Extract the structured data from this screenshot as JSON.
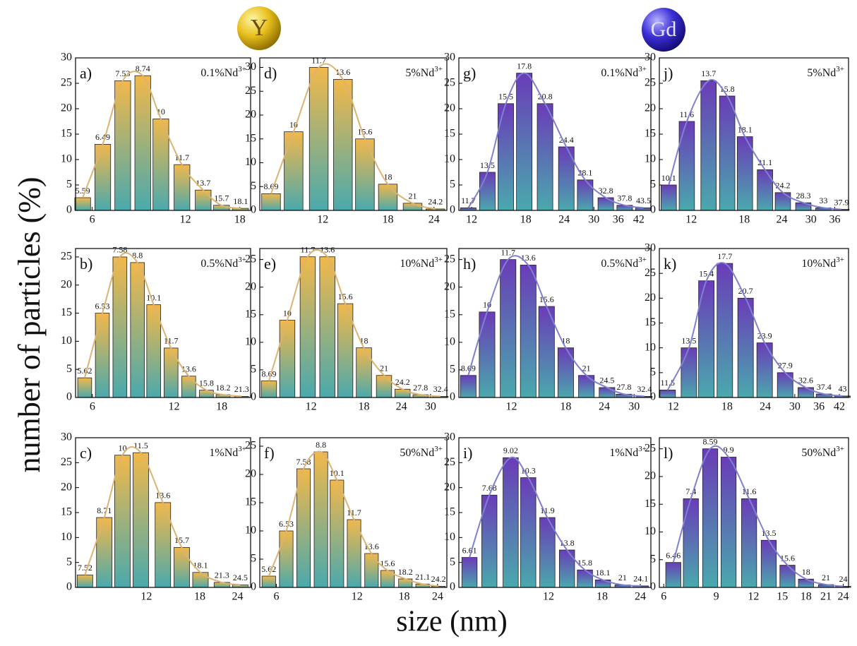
{
  "y_label": "number of particles (%)",
  "x_label": "size (nm)",
  "column_headers": [
    "Y",
    "Gd"
  ],
  "chart_data": [
    {
      "type": "bar",
      "label": "a)",
      "annotation": "0.1%Nd",
      "annotation_superscript": "3+",
      "xscale": "log",
      "x": [
        5.59,
        6.49,
        7.53,
        8.74,
        10,
        11.7,
        13.7,
        15.7,
        18.1
      ],
      "values": [
        2.5,
        13,
        25.5,
        26.5,
        18,
        9,
        4,
        1,
        0.4
      ],
      "xlim": [
        5.3,
        19.5
      ],
      "ylim": [
        0,
        30
      ],
      "xticks": [
        6,
        12,
        18
      ],
      "yticks": [
        0,
        5,
        10,
        15,
        20,
        25,
        30
      ],
      "color": "#f2b84a",
      "color_bottom": "#4aa9ad",
      "fit_color": "#dcb371"
    },
    {
      "type": "bar",
      "label": "b)",
      "annotation": "0.5%Nd",
      "annotation_superscript": "3+",
      "xscale": "log",
      "x": [
        5.62,
        6.53,
        7.58,
        8.8,
        10.1,
        11.7,
        13.6,
        15.8,
        18.2,
        21.3
      ],
      "values": [
        3.5,
        15,
        25,
        24,
        16.5,
        8.8,
        3.8,
        1.3,
        0.5,
        0.2
      ],
      "xlim": [
        5.2,
        23
      ],
      "ylim": [
        0,
        26.5
      ],
      "xticks": [
        6,
        12,
        18
      ],
      "yticks": [
        0,
        5,
        10,
        15,
        20,
        25
      ],
      "color": "#f2b84a",
      "color_bottom": "#4aa9ad",
      "fit_color": "#dcb371"
    },
    {
      "type": "bar",
      "label": "c)",
      "annotation": "1%Nd",
      "annotation_superscript": "3+",
      "xscale": "log",
      "x": [
        7.52,
        8.71,
        10,
        11.5,
        13.6,
        15.7,
        18.1,
        21.3,
        24.5
      ],
      "values": [
        2.5,
        14,
        26.5,
        27,
        17,
        8,
        3,
        1,
        0.5
      ],
      "xlim": [
        7,
        26.5
      ],
      "ylim": [
        0,
        30
      ],
      "xticks": [
        12,
        18,
        24
      ],
      "yticks": [
        0,
        5,
        10,
        15,
        20,
        25,
        30
      ],
      "color": "#f2b84a",
      "color_bottom": "#4aa9ad",
      "fit_color": "#dcb371"
    },
    {
      "type": "bar",
      "label": "d)",
      "annotation": "5%Nd",
      "annotation_superscript": "3+",
      "xscale": "log",
      "x": [
        8.69,
        10,
        11.7,
        13.6,
        15.6,
        18,
        21,
        24.2
      ],
      "values": [
        3.5,
        16.5,
        30,
        27.5,
        15,
        5.5,
        1.5,
        0.3
      ],
      "xlim": [
        8.1,
        26
      ],
      "ylim": [
        0,
        32
      ],
      "xticks": [
        12,
        18,
        24
      ],
      "yticks": [
        0,
        5,
        10,
        15,
        20,
        25,
        30
      ],
      "color": "#f2b84a",
      "color_bottom": "#4aa9ad",
      "fit_color": "#dcb371"
    },
    {
      "type": "bar",
      "label": "e)",
      "annotation": "10%Nd",
      "annotation_superscript": "3+",
      "xscale": "log",
      "x": [
        8.69,
        10,
        11.7,
        13.6,
        15.6,
        18,
        21,
        24.2,
        27.8,
        32.4
      ],
      "values": [
        3,
        14,
        25.5,
        25.5,
        17,
        9,
        4,
        1.5,
        0.5,
        0.2
      ],
      "xlim": [
        8.1,
        34
      ],
      "ylim": [
        0,
        27
      ],
      "xticks": [
        12,
        18,
        24,
        30
      ],
      "yticks": [
        0,
        5,
        10,
        15,
        20,
        25
      ],
      "color": "#f2b84a",
      "color_bottom": "#4aa9ad",
      "fit_color": "#dcb371"
    },
    {
      "type": "bar",
      "label": "f)",
      "annotation": "50%Nd",
      "annotation_superscript": "3+",
      "xscale": "log",
      "x": [
        5.62,
        6.53,
        7.58,
        8.8,
        10.1,
        11.7,
        13.6,
        15.6,
        18.2,
        21.1,
        24.2
      ],
      "values": [
        2,
        10,
        21,
        24,
        19,
        12,
        6,
        3,
        1.5,
        0.6,
        0.2
      ],
      "xlim": [
        5.2,
        26
      ],
      "ylim": [
        0,
        26.5
      ],
      "xticks": [
        6,
        12,
        18,
        24
      ],
      "yticks": [
        0,
        5,
        10,
        15,
        20,
        25
      ],
      "color": "#f2b84a",
      "color_bottom": "#4aa9ad",
      "fit_color": "#dcb371"
    },
    {
      "type": "bar",
      "label": "g)",
      "annotation": "0.1%Nd",
      "annotation_superscript": "3+",
      "xscale": "log",
      "x": [
        11.7,
        13.5,
        15.5,
        17.8,
        20.8,
        24.4,
        28.1,
        32.8,
        37.8,
        43.5
      ],
      "values": [
        0.5,
        7.5,
        21,
        27,
        21,
        12.5,
        6,
        2.5,
        1,
        0.5
      ],
      "xlim": [
        10.9,
        46
      ],
      "ylim": [
        0,
        30
      ],
      "xticks": [
        12,
        18,
        24,
        30,
        36,
        42
      ],
      "yticks": [
        0,
        5,
        10,
        15,
        20,
        25,
        30
      ],
      "color": "#6a3cb8",
      "color_bottom": "#4aa9ad",
      "fit_color": "#7f80d2"
    },
    {
      "type": "bar",
      "label": "h)",
      "annotation": "0.5%Nd",
      "annotation_superscript": "3+",
      "xscale": "log",
      "x": [
        8.69,
        10,
        11.7,
        13.6,
        15.6,
        18,
        21,
        24.5,
        27.8,
        32.4
      ],
      "values": [
        4,
        15.5,
        25,
        24,
        16.5,
        9,
        4,
        1.8,
        0.6,
        0.2
      ],
      "xlim": [
        8.1,
        34
      ],
      "ylim": [
        0,
        27
      ],
      "xticks": [
        12,
        18,
        24,
        30
      ],
      "yticks": [
        0,
        5,
        10,
        15,
        20,
        25
      ],
      "color": "#6a3cb8",
      "color_bottom": "#4aa9ad",
      "fit_color": "#7f80d2"
    },
    {
      "type": "bar",
      "label": "i)",
      "annotation": "1%Nd",
      "annotation_superscript": "3+",
      "xscale": "log",
      "x": [
        6.61,
        7.68,
        9.02,
        10.3,
        11.9,
        13.8,
        15.8,
        18.1,
        21,
        24.1
      ],
      "values": [
        6,
        18.5,
        26,
        22,
        14,
        7.5,
        3.5,
        1.5,
        0.5,
        0.3
      ],
      "xlim": [
        6.1,
        26
      ],
      "ylim": [
        0,
        30
      ],
      "xticks": [
        12,
        18,
        24
      ],
      "yticks": [
        0,
        5,
        10,
        15,
        20,
        25,
        30
      ],
      "color": "#6a3cb8",
      "color_bottom": "#4aa9ad",
      "fit_color": "#7f80d2"
    },
    {
      "type": "bar",
      "label": "j)",
      "annotation": "5%Nd",
      "annotation_superscript": "3+",
      "xscale": "log",
      "x": [
        10.1,
        11.6,
        13.7,
        15.8,
        18.1,
        21.1,
        24.2,
        28.3,
        33,
        37.9
      ],
      "values": [
        5,
        17.5,
        25.5,
        22.5,
        14.5,
        8,
        3.5,
        1.5,
        0.5,
        0.2
      ],
      "xlim": [
        9.4,
        40
      ],
      "ylim": [
        0,
        30
      ],
      "xticks": [
        12,
        18,
        24,
        30,
        36
      ],
      "yticks": [
        0,
        5,
        10,
        15,
        20,
        25,
        30
      ],
      "color": "#6a3cb8",
      "color_bottom": "#4aa9ad",
      "fit_color": "#7f80d2"
    },
    {
      "type": "bar",
      "label": "k)",
      "annotation": "10%Nd",
      "annotation_superscript": "3+",
      "xscale": "log",
      "x": [
        11.5,
        13.5,
        15.4,
        17.7,
        20.7,
        23.9,
        27.9,
        32.6,
        37.4,
        43
      ],
      "values": [
        1.5,
        10,
        23.5,
        27,
        20,
        11,
        5,
        2,
        0.7,
        0.3
      ],
      "xlim": [
        10.8,
        45
      ],
      "ylim": [
        0,
        30
      ],
      "xticks": [
        12,
        18,
        24,
        30,
        36,
        42
      ],
      "yticks": [
        0,
        5,
        10,
        15,
        20,
        25,
        30
      ],
      "color": "#6a3cb8",
      "color_bottom": "#4aa9ad",
      "fit_color": "#7f80d2"
    },
    {
      "type": "bar",
      "label": "l)",
      "annotation": "50%Nd",
      "annotation_superscript": "3+",
      "xscale": "log",
      "x": [
        6.46,
        7.4,
        8.59,
        9.9,
        11.6,
        13.5,
        15.6,
        18,
        21,
        24
      ],
      "values": [
        4.5,
        16,
        25,
        23.5,
        16,
        8.5,
        4,
        1.5,
        0.5,
        0.2
      ],
      "xlim": [
        5.8,
        25
      ],
      "ylim": [
        0,
        27
      ],
      "xticks": [
        6,
        9,
        12,
        15,
        18,
        21,
        24
      ],
      "yticks": [
        0,
        5,
        10,
        15,
        20,
        25
      ],
      "color": "#6a3cb8",
      "color_bottom": "#4aa9ad",
      "fit_color": "#7f80d2"
    }
  ]
}
